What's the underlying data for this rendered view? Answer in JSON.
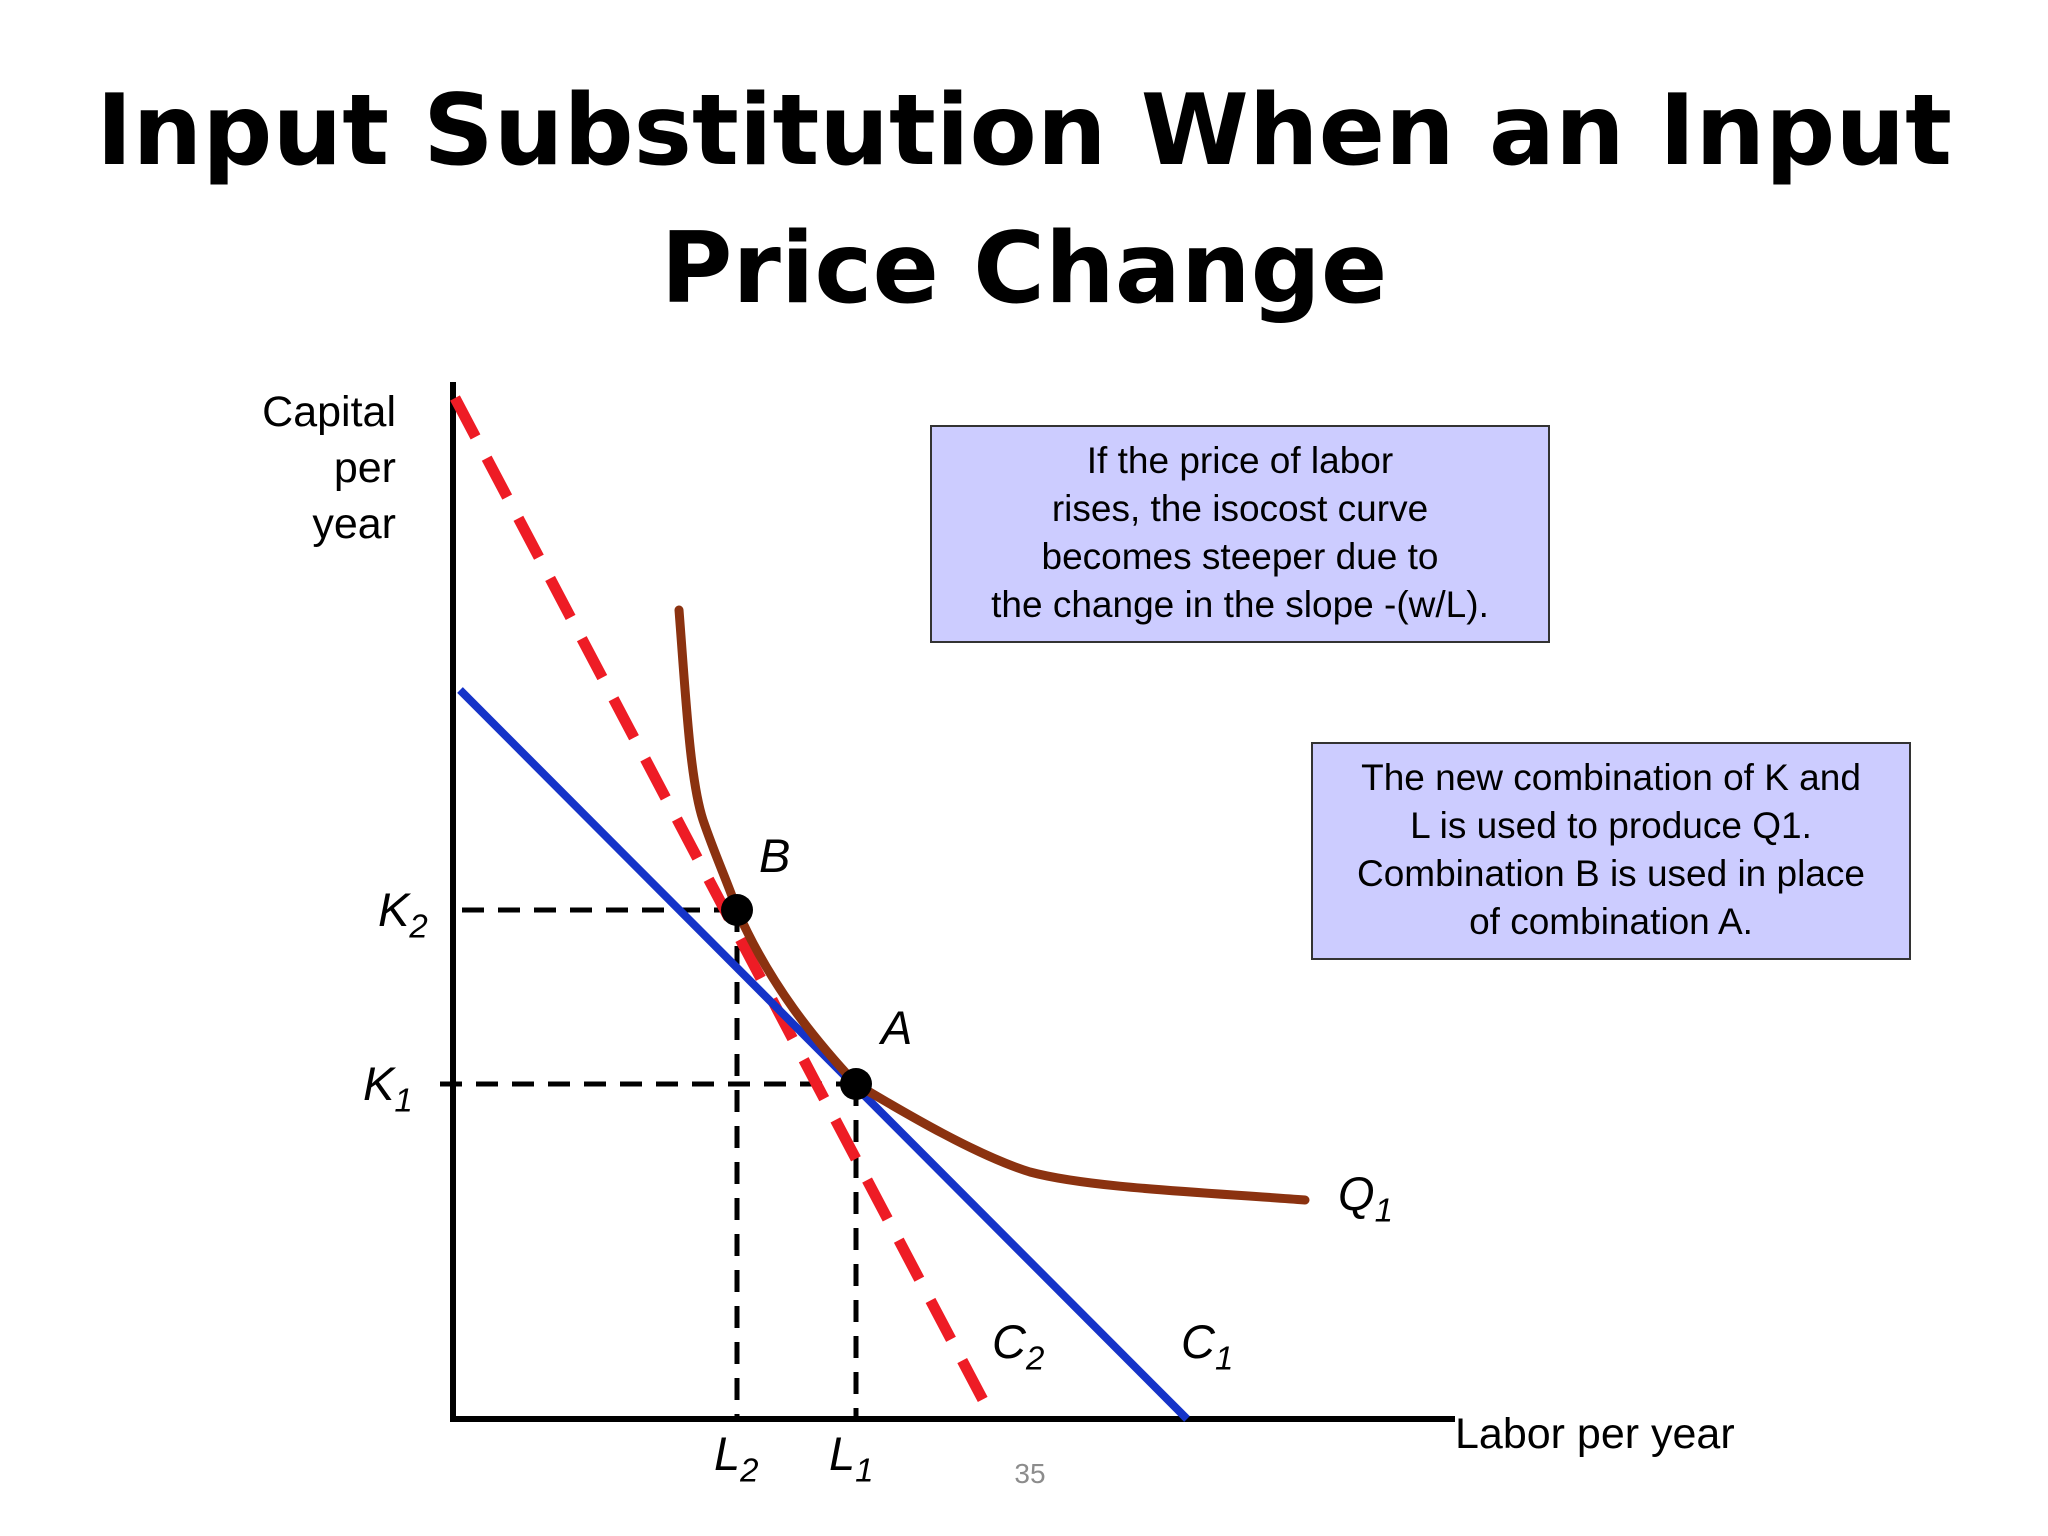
{
  "title": {
    "line1": "Input Substitution When an Input",
    "line2": "Price Change"
  },
  "axes": {
    "y_label": [
      "Capital",
      "per",
      "year"
    ],
    "x_label": "Labor per year"
  },
  "points": {
    "B": "B",
    "A": "A"
  },
  "levels": {
    "K2": {
      "base": "K",
      "sub": "2"
    },
    "K1": {
      "base": "K",
      "sub": "1"
    },
    "L2": {
      "base": "L",
      "sub": "2"
    },
    "L1": {
      "base": "L",
      "sub": "1"
    }
  },
  "curves": {
    "C2": {
      "base": "C",
      "sub": "2",
      "color": "#ee1c25",
      "style": "dashed"
    },
    "C1": {
      "base": "C",
      "sub": "1",
      "color": "#1533c8",
      "style": "solid"
    },
    "Q1": {
      "base": "Q",
      "sub": "1",
      "color": "#8b3210",
      "style": "solid"
    }
  },
  "box_top": {
    "lines": [
      "If the price of labor",
      "rises, the isocost curve",
      "becomes steeper due to",
      "the change in the slope -(w/L)."
    ]
  },
  "box_right": {
    "lines": [
      "The new combination of K and",
      "L is used to produce Q1.",
      "Combination B is used in place",
      "of combination A."
    ]
  },
  "page_number": "35"
}
